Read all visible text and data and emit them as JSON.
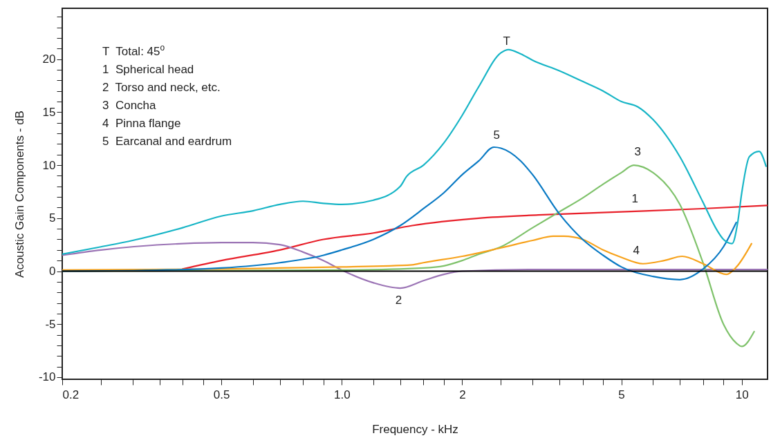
{
  "chart_data": {
    "type": "line",
    "xlabel": "Frequency - kHz",
    "ylabel": "Acoustic Gain Components - dB",
    "log": "x",
    "xlim": [
      0.2,
      11.6
    ],
    "ylim": [
      -10.2,
      24.8
    ],
    "xticks": [
      0.2,
      {
        "value": 0.25,
        "label": null
      },
      {
        "value": 0.3,
        "label": null
      },
      {
        "value": 0.35,
        "label": null
      },
      {
        "value": 0.4,
        "label": null
      },
      {
        "value": 0.45,
        "label": null
      },
      0.5,
      {
        "value": 0.6,
        "label": null
      },
      {
        "value": 0.7,
        "label": null
      },
      {
        "value": 0.8,
        "label": null
      },
      {
        "value": 0.9,
        "label": null
      },
      {
        "value": 1,
        "label": "1.0"
      },
      {
        "value": 1.2,
        "label": null
      },
      {
        "value": 1.4,
        "label": null
      },
      {
        "value": 1.6,
        "label": null
      },
      {
        "value": 1.8,
        "label": null
      },
      2,
      {
        "value": 2.5,
        "label": null
      },
      {
        "value": 3,
        "label": null
      },
      {
        "value": 3.5,
        "label": null
      },
      {
        "value": 4,
        "label": null
      },
      {
        "value": 4.5,
        "label": null
      },
      5,
      {
        "value": 6,
        "label": null
      },
      {
        "value": 7,
        "label": null
      },
      {
        "value": 8,
        "label": null
      },
      {
        "value": 9,
        "label": null
      },
      10
    ],
    "yticks": [
      -10,
      {
        "value": -9,
        "label": null
      },
      {
        "value": -8,
        "label": null
      },
      {
        "value": -7,
        "label": null
      },
      {
        "value": -6,
        "label": null
      },
      -5,
      {
        "value": -4,
        "label": null
      },
      {
        "value": -3,
        "label": null
      },
      {
        "value": -2,
        "label": null
      },
      {
        "value": -1,
        "label": null
      },
      0,
      {
        "value": 1,
        "label": null
      },
      {
        "value": 2,
        "label": null
      },
      {
        "value": 3,
        "label": null
      },
      {
        "value": 4,
        "label": null
      },
      5,
      {
        "value": 6,
        "label": null
      },
      {
        "value": 7,
        "label": null
      },
      {
        "value": 8,
        "label": null
      },
      {
        "value": 9,
        "label": null
      },
      10,
      {
        "value": 11,
        "label": null
      },
      {
        "value": 12,
        "label": null
      },
      {
        "value": 13,
        "label": null
      },
      {
        "value": 14,
        "label": null
      },
      15,
      {
        "value": 16,
        "label": null
      },
      {
        "value": 17,
        "label": null
      },
      {
        "value": 18,
        "label": null
      },
      {
        "value": 19,
        "label": null
      },
      20,
      {
        "value": 21,
        "label": null
      },
      {
        "value": 22,
        "label": null
      },
      {
        "value": 23,
        "label": null
      },
      {
        "value": 24,
        "label": null
      }
    ],
    "series": [
      {
        "name": "1",
        "color": "#e8202a",
        "x": [
          0.4,
          0.5,
          0.7,
          0.9,
          1.2,
          1.5,
          2.2,
          3.1,
          5,
          8,
          11.6
        ],
        "values": [
          0.2,
          1.0,
          2.0,
          3.0,
          3.6,
          4.3,
          5.0,
          5.3,
          5.6,
          5.9,
          6.2
        ]
      },
      {
        "name": "2",
        "color": "#9b74b5",
        "x": [
          0.2,
          0.25,
          0.4,
          0.5,
          0.6,
          0.7,
          0.8,
          0.9,
          1.0,
          1.2,
          1.4,
          1.6,
          1.8,
          2,
          3,
          5,
          8,
          11.6
        ],
        "values": [
          1.5,
          2.0,
          2.6,
          2.7,
          2.7,
          2.5,
          1.8,
          1.0,
          0.1,
          -1.1,
          -1.6,
          -0.9,
          -0.3,
          0,
          0.15,
          0.15,
          0.15,
          0.15
        ]
      },
      {
        "name": "3",
        "color": "#7fc26b",
        "x": [
          0.2,
          0.5,
          1.0,
          1.6,
          1.8,
          2,
          2.2,
          2.5,
          3,
          3.5,
          4,
          4.5,
          5,
          5.37,
          6,
          7,
          8,
          9,
          9.7,
          10,
          10.74
        ],
        "values": [
          0,
          0.05,
          0.1,
          0.3,
          0.5,
          1.0,
          1.6,
          2.3,
          4.1,
          5.6,
          6.9,
          8.2,
          9.3,
          10.0,
          9.3,
          6.3,
          0.8,
          -5.0,
          -6.8,
          -7.1,
          -5.7
        ]
      },
      {
        "name": "4",
        "color": "#f7a21b",
        "x": [
          0.2,
          0.5,
          0.7,
          1.0,
          1.5,
          1.6,
          2,
          2.5,
          3,
          3.38,
          3.59,
          4,
          4.5,
          5,
          5.66,
          6.4,
          7.1,
          8,
          9.16,
          9.7,
          10.58
        ],
        "values": [
          0.1,
          0.2,
          0.3,
          0.4,
          0.6,
          0.8,
          1.4,
          2.2,
          2.9,
          3.3,
          3.3,
          3.0,
          2.0,
          1.3,
          0.7,
          1.0,
          1.4,
          0.7,
          -0.3,
          0.4,
          2.6
        ]
      },
      {
        "name": "5",
        "color": "#0a7ac4",
        "x": [
          0.2,
          0.3,
          0.5,
          0.7,
          0.9,
          1.0,
          1.2,
          1.4,
          1.6,
          1.8,
          2,
          2.2,
          2.4,
          2.5,
          2.8,
          3,
          3.5,
          4,
          4.5,
          5,
          6,
          7,
          8,
          9,
          9.69
        ],
        "values": [
          0,
          0.05,
          0.3,
          0.8,
          1.5,
          2.0,
          3.0,
          4.3,
          5.9,
          7.4,
          9.1,
          10.4,
          11.7,
          11.6,
          10.4,
          9.1,
          5.4,
          3.0,
          1.5,
          0.4,
          -0.5,
          -0.8,
          0.2,
          2.3,
          4.6
        ]
      },
      {
        "name": "T",
        "color": "#17b5c6",
        "x": [
          0.2,
          0.25,
          0.3,
          0.4,
          0.5,
          0.6,
          0.7,
          0.8,
          0.9,
          1.0,
          1.2,
          1.4,
          1.45,
          1.6,
          1.8,
          2,
          2.2,
          2.5,
          2.61,
          2.8,
          3,
          3.5,
          4,
          4.5,
          5,
          5.5,
          6,
          7,
          8,
          8.66,
          9,
          9.46,
          9.77,
          10,
          10.45,
          11.05,
          11.5
        ],
        "values": [
          1.6,
          2.3,
          2.9,
          4.1,
          5.2,
          5.7,
          6.3,
          6.6,
          6.4,
          6.3,
          6.7,
          8.0,
          8.9,
          10.0,
          12.1,
          14.7,
          17.4,
          20.6,
          20.9,
          20.5,
          19.9,
          18.9,
          17.9,
          17.0,
          16.0,
          15.5,
          14.3,
          10.8,
          6.5,
          3.9,
          3.0,
          2.6,
          4.6,
          7.4,
          10.8,
          11.3,
          9.9
        ]
      }
    ],
    "ref_lines": [
      {
        "axis": "y",
        "value": 0,
        "color": "#000000"
      }
    ],
    "annotations": [
      "T  Total: 45$^{o}$",
      "1  Spherical head",
      "2  Torso and neck, etc.",
      "3  Concha",
      "4  Pinna flange",
      "5  Earcanal and eardrum"
    ]
  }
}
